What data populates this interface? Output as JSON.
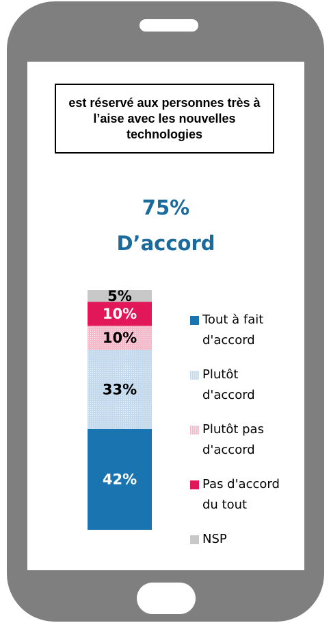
{
  "chart_data": {
    "type": "stacked-bar",
    "title": "est réservé aux personnes très à l’aise avec les nouvelles technologies",
    "annotations": [
      "75%",
      "D’accord"
    ],
    "series": [
      {
        "name": "Tout à fait d'accord",
        "color": "#1a74b0",
        "pattern": false,
        "values": [
          42
        ],
        "value_labels": [
          "42%"
        ]
      },
      {
        "name": "Plutôt d'accord",
        "color": "#c3d9ee",
        "pattern": true,
        "values": [
          33
        ],
        "value_labels": [
          "33%"
        ]
      },
      {
        "name": "Plutôt pas d'accord",
        "color": "#f5b9c9",
        "pattern": true,
        "values": [
          10
        ],
        "value_labels": [
          "10%"
        ]
      },
      {
        "name": "Pas d'accord du tout",
        "color": "#e2175a",
        "pattern": false,
        "values": [
          10
        ],
        "value_labels": [
          "10%"
        ]
      },
      {
        "name": "NSP",
        "color": "#c8c8c8",
        "pattern": false,
        "values": [
          5
        ],
        "value_labels": [
          "5%"
        ]
      }
    ]
  }
}
